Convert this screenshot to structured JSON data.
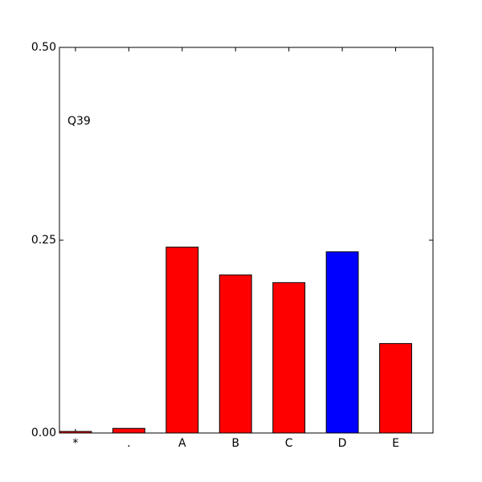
{
  "chart_data": {
    "type": "bar",
    "annotation": "Q39",
    "categories": [
      "*",
      ".",
      "A",
      "B",
      "C",
      "D",
      "E"
    ],
    "values": [
      0.002,
      0.006,
      0.241,
      0.205,
      0.195,
      0.235,
      0.116
    ],
    "colors": [
      "#ff0000",
      "#ff0000",
      "#ff0000",
      "#ff0000",
      "#ff0000",
      "#0000ff",
      "#ff0000"
    ],
    "ylim": [
      0,
      0.5
    ],
    "yticks": [
      {
        "value": 0,
        "label": "0.00"
      },
      {
        "value": 0.25,
        "label": "0.25"
      },
      {
        "value": 0.5,
        "label": "0.50"
      }
    ]
  }
}
